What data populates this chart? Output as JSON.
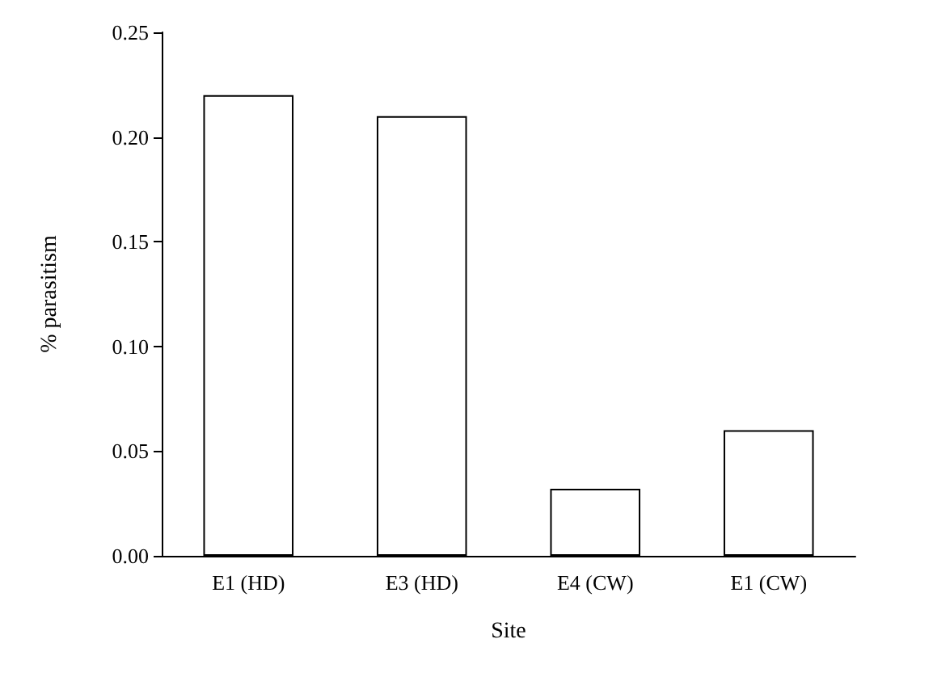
{
  "chart_data": {
    "type": "bar",
    "xlabel": "Site",
    "ylabel": "% parasitism",
    "categories": [
      "E1 (HD)",
      "E3 (HD)",
      "E4 (CW)",
      "E1 (CW)"
    ],
    "values": [
      0.22,
      0.21,
      0.032,
      0.06
    ],
    "color": "#ffffff",
    "ylim": [
      0,
      0.25
    ],
    "yticks": [
      {
        "value": 0,
        "label": "0.00"
      },
      {
        "value": 0.05,
        "label": "0.05"
      },
      {
        "value": 0.1,
        "label": "0.10"
      },
      {
        "value": 0.15,
        "label": "0.15"
      },
      {
        "value": 0.2,
        "label": "0.20"
      },
      {
        "value": 0.25,
        "label": "0.25"
      }
    ],
    "grid": false
  }
}
